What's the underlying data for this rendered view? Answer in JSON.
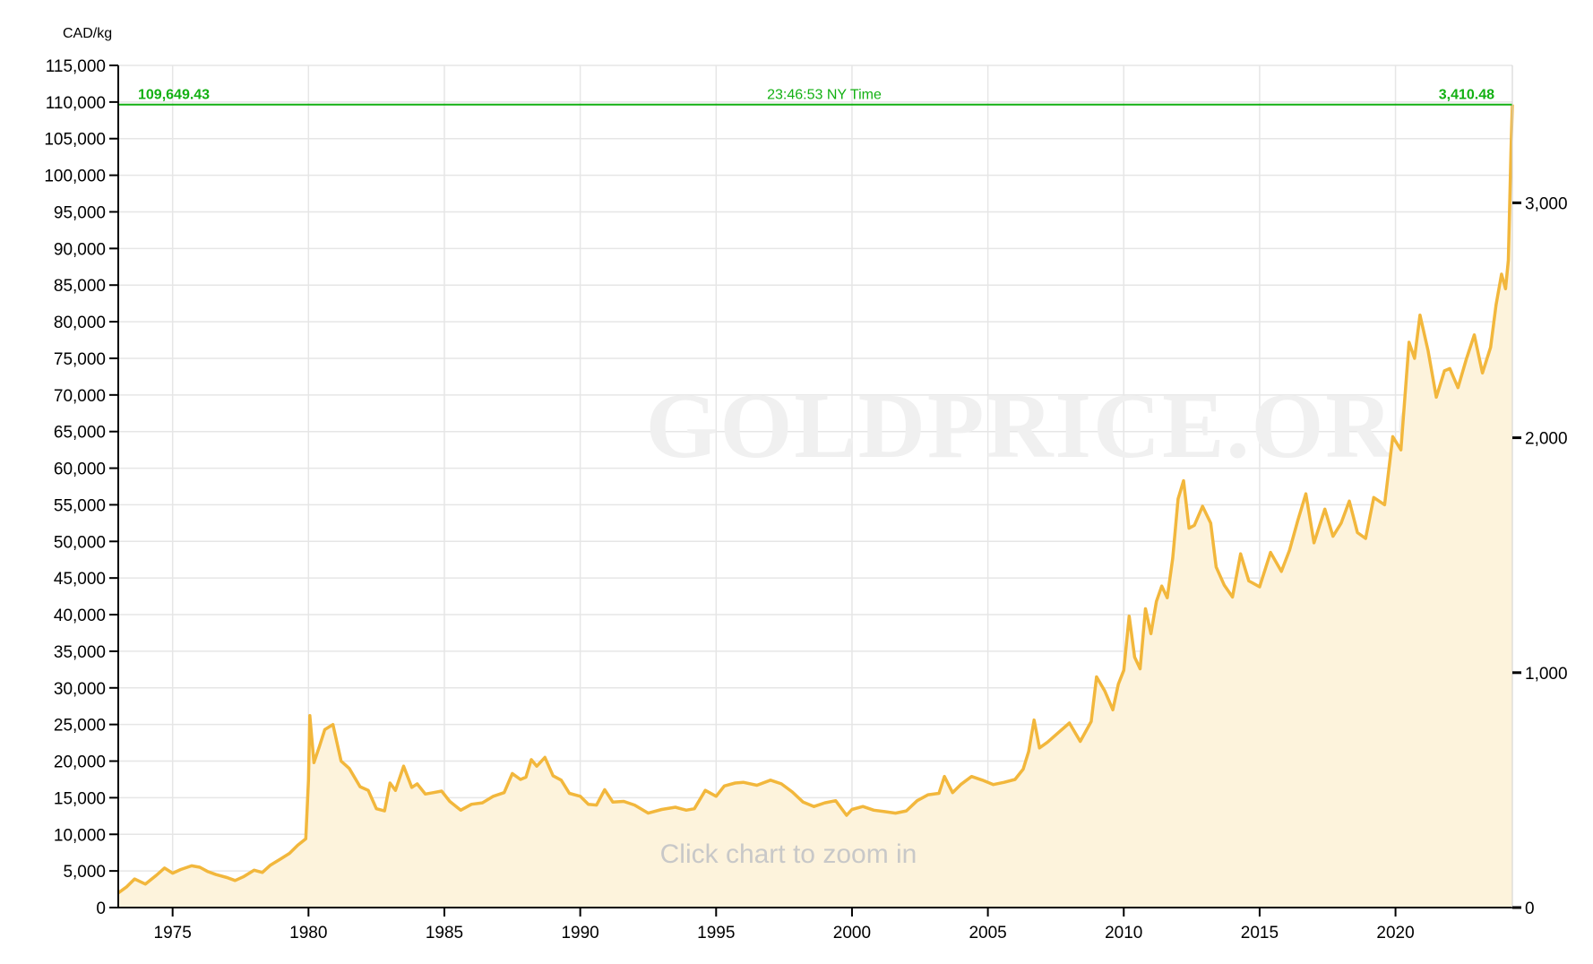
{
  "chart_data": {
    "type": "area",
    "currency_unit": "CAD/kg",
    "watermark": "GOLDPRICE.ORG",
    "zoom_hint": "Click chart to zoom in",
    "current_line": {
      "left_value": "109,649.43",
      "center_text": "23:46:53 NY Time",
      "right_value": "3,410.48",
      "value": 109649.43
    },
    "x_axis": {
      "ticks": [
        "1975",
        "1980",
        "1985",
        "1990",
        "1995",
        "2000",
        "2005",
        "2010",
        "2015",
        "2020"
      ],
      "range": [
        1973.0,
        2024.3
      ]
    },
    "y_axis_left": {
      "ticks": [
        "0",
        "5,000",
        "10,000",
        "15,000",
        "20,000",
        "25,000",
        "30,000",
        "35,000",
        "40,000",
        "45,000",
        "50,000",
        "55,000",
        "60,000",
        "65,000",
        "70,000",
        "75,000",
        "80,000",
        "85,000",
        "90,000",
        "95,000",
        "100,000",
        "105,000",
        "110,000",
        "115,000"
      ],
      "range": [
        0,
        115000
      ]
    },
    "y_axis_right": {
      "ticks": [
        "0",
        "1,000",
        "2,000",
        "3,000"
      ],
      "range": [
        0,
        3585
      ]
    },
    "colors": {
      "line": "#f2b73c",
      "fill": "#fdf3dc",
      "current_line": "#12b012",
      "grid": "#e6e6e6"
    },
    "series": [
      {
        "points": [
          [
            1973.0,
            2000
          ],
          [
            1973.3,
            2800
          ],
          [
            1973.6,
            3900
          ],
          [
            1974.0,
            3200
          ],
          [
            1974.4,
            4400
          ],
          [
            1974.7,
            5400
          ],
          [
            1975.0,
            4700
          ],
          [
            1975.3,
            5200
          ],
          [
            1975.7,
            5700
          ],
          [
            1976.0,
            5500
          ],
          [
            1976.3,
            4900
          ],
          [
            1976.6,
            4500
          ],
          [
            1977.0,
            4100
          ],
          [
            1977.3,
            3700
          ],
          [
            1977.6,
            4200
          ],
          [
            1978.0,
            5100
          ],
          [
            1978.3,
            4800
          ],
          [
            1978.6,
            5800
          ],
          [
            1979.0,
            6700
          ],
          [
            1979.3,
            7400
          ],
          [
            1979.6,
            8500
          ],
          [
            1979.9,
            9400
          ],
          [
            1980.0,
            17400
          ],
          [
            1980.05,
            26200
          ],
          [
            1980.2,
            19800
          ],
          [
            1980.4,
            22000
          ],
          [
            1980.6,
            24300
          ],
          [
            1980.9,
            25000
          ],
          [
            1981.2,
            20000
          ],
          [
            1981.5,
            19000
          ],
          [
            1981.9,
            16500
          ],
          [
            1982.2,
            16000
          ],
          [
            1982.5,
            13500
          ],
          [
            1982.8,
            13200
          ],
          [
            1983.0,
            17000
          ],
          [
            1983.2,
            16000
          ],
          [
            1983.5,
            19300
          ],
          [
            1983.8,
            16400
          ],
          [
            1984.0,
            16900
          ],
          [
            1984.3,
            15500
          ],
          [
            1984.6,
            15700
          ],
          [
            1984.9,
            15900
          ],
          [
            1985.2,
            14500
          ],
          [
            1985.6,
            13300
          ],
          [
            1986.0,
            14100
          ],
          [
            1986.4,
            14300
          ],
          [
            1986.8,
            15200
          ],
          [
            1987.2,
            15700
          ],
          [
            1987.5,
            18300
          ],
          [
            1987.8,
            17500
          ],
          [
            1988.0,
            17800
          ],
          [
            1988.2,
            20200
          ],
          [
            1988.4,
            19300
          ],
          [
            1988.7,
            20500
          ],
          [
            1989.0,
            18000
          ],
          [
            1989.3,
            17400
          ],
          [
            1989.6,
            15600
          ],
          [
            1990.0,
            15200
          ],
          [
            1990.3,
            14100
          ],
          [
            1990.6,
            14000
          ],
          [
            1990.9,
            16100
          ],
          [
            1991.2,
            14400
          ],
          [
            1991.6,
            14500
          ],
          [
            1992.0,
            14000
          ],
          [
            1992.5,
            12900
          ],
          [
            1993.0,
            13400
          ],
          [
            1993.5,
            13700
          ],
          [
            1993.9,
            13300
          ],
          [
            1994.2,
            13500
          ],
          [
            1994.6,
            16000
          ],
          [
            1995.0,
            15200
          ],
          [
            1995.3,
            16600
          ],
          [
            1995.7,
            17000
          ],
          [
            1996.0,
            17100
          ],
          [
            1996.5,
            16700
          ],
          [
            1997.0,
            17400
          ],
          [
            1997.4,
            16900
          ],
          [
            1997.8,
            15800
          ],
          [
            1998.2,
            14400
          ],
          [
            1998.6,
            13800
          ],
          [
            1999.0,
            14300
          ],
          [
            1999.4,
            14600
          ],
          [
            1999.8,
            12600
          ],
          [
            2000.0,
            13400
          ],
          [
            2000.4,
            13800
          ],
          [
            2000.8,
            13300
          ],
          [
            2001.2,
            13100
          ],
          [
            2001.6,
            12900
          ],
          [
            2002.0,
            13200
          ],
          [
            2002.4,
            14600
          ],
          [
            2002.8,
            15400
          ],
          [
            2003.2,
            15600
          ],
          [
            2003.4,
            17900
          ],
          [
            2003.7,
            15700
          ],
          [
            2004.0,
            16800
          ],
          [
            2004.4,
            17900
          ],
          [
            2004.8,
            17400
          ],
          [
            2005.2,
            16800
          ],
          [
            2005.6,
            17100
          ],
          [
            2006.0,
            17500
          ],
          [
            2006.3,
            18900
          ],
          [
            2006.5,
            21300
          ],
          [
            2006.7,
            25600
          ],
          [
            2006.9,
            21800
          ],
          [
            2007.2,
            22600
          ],
          [
            2007.6,
            23900
          ],
          [
            2008.0,
            25200
          ],
          [
            2008.4,
            22700
          ],
          [
            2008.8,
            25400
          ],
          [
            2009.0,
            31500
          ],
          [
            2009.3,
            29600
          ],
          [
            2009.6,
            27000
          ],
          [
            2009.8,
            30500
          ],
          [
            2010.0,
            32400
          ],
          [
            2010.2,
            39800
          ],
          [
            2010.4,
            34200
          ],
          [
            2010.6,
            32600
          ],
          [
            2010.8,
            40800
          ],
          [
            2011.0,
            37400
          ],
          [
            2011.2,
            41800
          ],
          [
            2011.4,
            43900
          ],
          [
            2011.6,
            42300
          ],
          [
            2011.8,
            47700
          ],
          [
            2012.0,
            55800
          ],
          [
            2012.2,
            58300
          ],
          [
            2012.4,
            51800
          ],
          [
            2012.6,
            52200
          ],
          [
            2012.9,
            54800
          ],
          [
            2013.2,
            52500
          ],
          [
            2013.4,
            46500
          ],
          [
            2013.7,
            44000
          ],
          [
            2014.0,
            42400
          ],
          [
            2014.3,
            48300
          ],
          [
            2014.6,
            44600
          ],
          [
            2015.0,
            43800
          ],
          [
            2015.4,
            48500
          ],
          [
            2015.8,
            45900
          ],
          [
            2016.1,
            48800
          ],
          [
            2016.4,
            52800
          ],
          [
            2016.7,
            56500
          ],
          [
            2017.0,
            49800
          ],
          [
            2017.4,
            54400
          ],
          [
            2017.7,
            50700
          ],
          [
            2018.0,
            52500
          ],
          [
            2018.3,
            55500
          ],
          [
            2018.6,
            51200
          ],
          [
            2018.9,
            50400
          ],
          [
            2019.2,
            56000
          ],
          [
            2019.6,
            55000
          ],
          [
            2019.9,
            64300
          ],
          [
            2020.2,
            62500
          ],
          [
            2020.5,
            77200
          ],
          [
            2020.7,
            75000
          ],
          [
            2020.9,
            80900
          ],
          [
            2021.2,
            76000
          ],
          [
            2021.5,
            69700
          ],
          [
            2021.8,
            73300
          ],
          [
            2022.0,
            73600
          ],
          [
            2022.3,
            71000
          ],
          [
            2022.6,
            74800
          ],
          [
            2022.9,
            78200
          ],
          [
            2023.2,
            73000
          ],
          [
            2023.5,
            76500
          ],
          [
            2023.7,
            82300
          ],
          [
            2023.9,
            86500
          ],
          [
            2024.05,
            84500
          ],
          [
            2024.15,
            88400
          ],
          [
            2024.25,
            103500
          ],
          [
            2024.3,
            109649
          ]
        ]
      }
    ]
  }
}
